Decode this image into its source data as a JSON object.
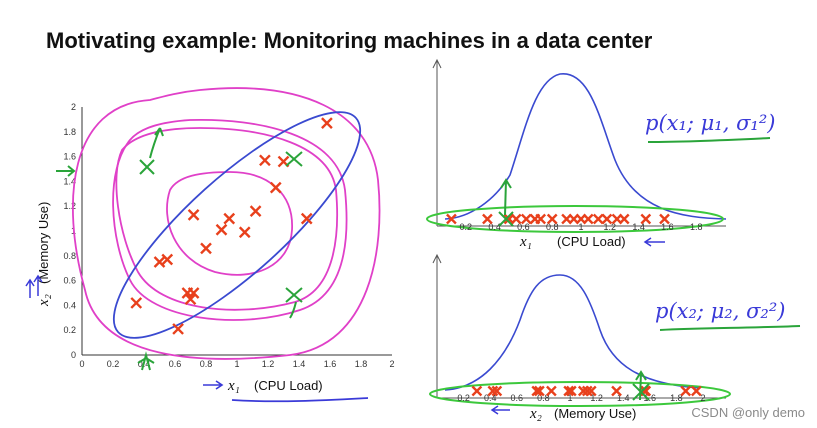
{
  "slide": {
    "title": "Motivating example: Monitoring machines in a data center",
    "watermark": "CSDN @only demo"
  },
  "colors": {
    "points": "#e8401c",
    "anomaly_marks": "#2aa43a",
    "pink_contours": "#e040c8",
    "blue_ellipse": "#3a4ad0",
    "gaussian_curve": "#3a4ad0",
    "green_highlight": "#3cc83c"
  },
  "scatter": {
    "xlabel_var": "x₁",
    "xlabel_text": "(CPU Load)",
    "ylabel_var": "x₂",
    "ylabel_text": "(Memory Use)",
    "xticks": [
      "0",
      "0.2",
      "0.4",
      "0.6",
      "0.8",
      "1",
      "1.2",
      "1.4",
      "1.6",
      "1.8",
      "2"
    ],
    "yticks": [
      "0",
      "0.2",
      "0.4",
      "0.6",
      "0.8",
      "1",
      "1.2",
      "1.4",
      "1.6",
      "1.8",
      "2"
    ]
  },
  "top_plot": {
    "axis_var": "x₁",
    "axis_text": "(CPU Load)",
    "xticks": [
      "0.2",
      "0.4",
      "0.6",
      "0.8",
      "1",
      "1.2",
      "1.4",
      "1.6",
      "1.8"
    ],
    "formula": "p(x₁; μ₁, σ₁²)"
  },
  "bottom_plot": {
    "axis_var": "x₂",
    "axis_text": "(Memory Use)",
    "xticks": [
      "0.2",
      "0.4",
      "0.6",
      "0.8",
      "1",
      "1.2",
      "1.4",
      "1.6",
      "1.8",
      "2"
    ],
    "formula": "p(x₂; μ₂, σ₂²)"
  },
  "chart_data": [
    {
      "type": "scatter",
      "title": "",
      "xlabel": "x₁ (CPU Load)",
      "ylabel": "x₂ (Memory Use)",
      "xlim": [
        0,
        2
      ],
      "ylim": [
        0,
        2
      ],
      "grid": false,
      "series": [
        {
          "marker": "x",
          "x": [
            0.35,
            0.5,
            0.55,
            0.62,
            0.68,
            0.7,
            0.72,
            0.8,
            0.9,
            0.95,
            1.05,
            1.12,
            1.18,
            1.25,
            1.3,
            1.45,
            1.58,
            0.72
          ],
          "y": [
            0.42,
            0.75,
            0.77,
            0.21,
            0.5,
            0.45,
            1.13,
            0.86,
            1.01,
            1.1,
            0.99,
            1.16,
            1.57,
            1.35,
            1.56,
            1.1,
            1.87,
            0.5
          ]
        }
      ]
    },
    {
      "type": "scatter",
      "title": "",
      "xlabel": "x₁ (CPU Load)",
      "ylabel": "",
      "xlim": [
        0,
        2
      ],
      "ylim": [
        0,
        1
      ],
      "series": [
        {
          "marker": "x",
          "x": [
            0.1,
            0.35,
            0.5,
            0.55,
            0.62,
            0.68,
            0.72,
            0.8,
            0.9,
            0.95,
            1.0,
            1.05,
            1.12,
            1.18,
            1.25,
            1.3,
            1.45,
            1.58
          ],
          "y": [
            0,
            0,
            0,
            0,
            0,
            0,
            0,
            0,
            0,
            0,
            0,
            0,
            0,
            0,
            0,
            0,
            0,
            0
          ]
        }
      ]
    },
    {
      "type": "scatter",
      "title": "",
      "xlabel": "x₂ (Memory Use)",
      "ylabel": "",
      "xlim": [
        0,
        2
      ],
      "ylim": [
        0,
        1
      ],
      "series": [
        {
          "marker": "x",
          "x": [
            0.3,
            0.42,
            0.45,
            0.75,
            0.77,
            0.86,
            0.99,
            1.01,
            1.1,
            1.13,
            1.16,
            1.35,
            1.56,
            1.57,
            1.87,
            1.95
          ],
          "y": [
            0,
            0,
            0,
            0,
            0,
            0,
            0,
            0,
            0,
            0,
            0,
            0,
            0,
            0,
            0,
            0
          ]
        }
      ]
    }
  ]
}
